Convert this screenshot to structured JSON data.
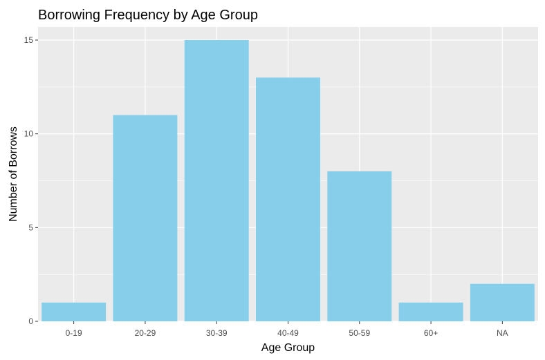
{
  "chart_data": {
    "type": "bar",
    "title": "Borrowing Frequency by Age Group",
    "xlabel": "Age Group",
    "ylabel": "Number of Borrows",
    "categories": [
      "0-19",
      "20-29",
      "30-39",
      "40-49",
      "50-59",
      "60+",
      "NA"
    ],
    "values": [
      1,
      11,
      15,
      13,
      8,
      1,
      2
    ],
    "ylim": [
      0,
      15.7
    ],
    "yticks": [
      0,
      5,
      10,
      15
    ],
    "grid": true,
    "legend": "none",
    "colors": {
      "bar": "#87CEEB",
      "panel": "#EBEBEB",
      "grid": "#FFFFFF",
      "tick_text": "#4D4D4D",
      "tick_mark": "#333333"
    }
  }
}
